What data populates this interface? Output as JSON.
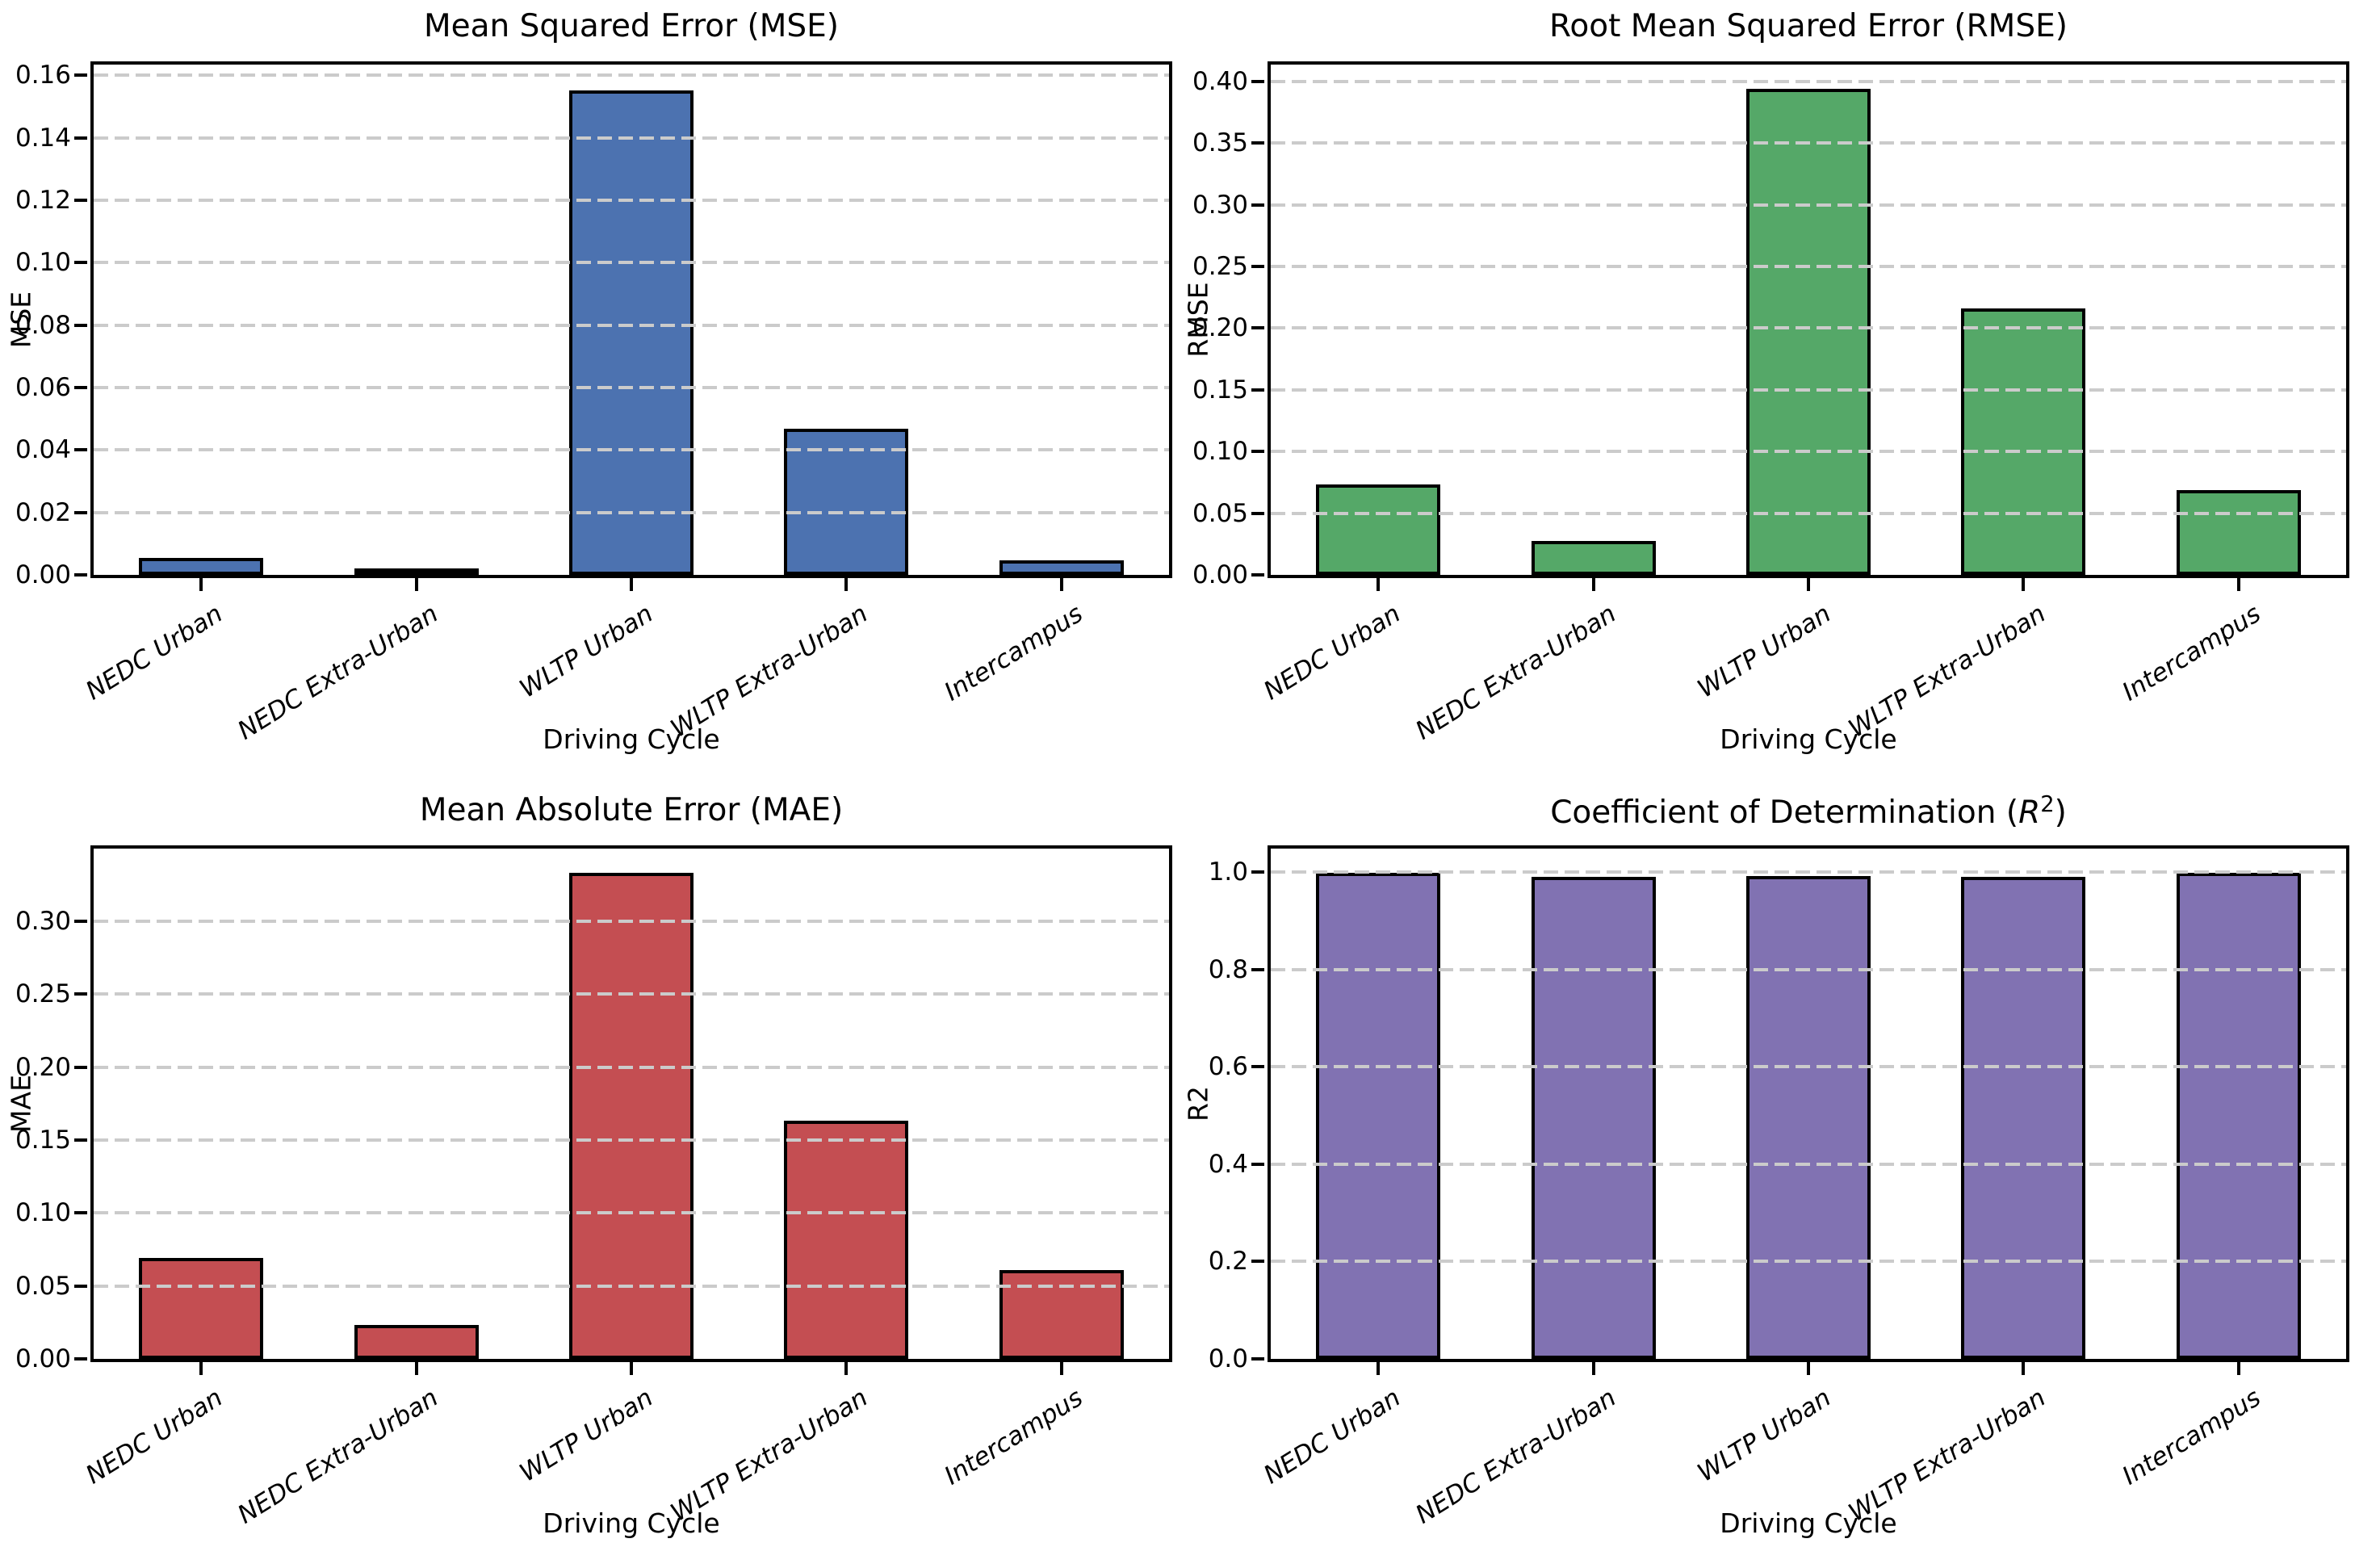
{
  "figure": {
    "background": "#ffffff",
    "grid_color": "#cbcbcb",
    "bar_edge_color": "#000000"
  },
  "chart_data": [
    {
      "type": "bar",
      "title": "Mean Squared Error (MSE)",
      "xlabel": "Driving Cycle",
      "ylabel": "MSE",
      "categories": [
        "NEDC Urban",
        "NEDC Extra-Urban",
        "WLTP Urban",
        "WLTP Extra-Urban",
        "Intercampus"
      ],
      "values": [
        0.0054,
        0.0008,
        0.1552,
        0.0468,
        0.0047
      ],
      "bar_color": "#4C72B0",
      "ylim": [
        0,
        0.1634
      ],
      "yticks": [
        0,
        0.02,
        0.04,
        0.06,
        0.08,
        0.1,
        0.12,
        0.14,
        0.16
      ],
      "ytick_labels": [
        "0.00",
        "0.02",
        "0.04",
        "0.06",
        "0.08",
        "0.10",
        "0.12",
        "0.14",
        "0.16"
      ],
      "grid": "horizontal-dashed",
      "legend": "none"
    },
    {
      "type": "bar",
      "title": "Root Mean Squared Error (RMSE)",
      "xlabel": "Driving Cycle",
      "ylabel": "RMSE",
      "categories": [
        "NEDC Urban",
        "NEDC Extra-Urban",
        "WLTP Urban",
        "WLTP Extra-Urban",
        "Intercampus"
      ],
      "values": [
        0.0735,
        0.0275,
        0.394,
        0.2163,
        0.0685
      ],
      "bar_color": "#55A868",
      "ylim": [
        0,
        0.4137
      ],
      "yticks": [
        0,
        0.05,
        0.1,
        0.15,
        0.2,
        0.25,
        0.3,
        0.35,
        0.4
      ],
      "ytick_labels": [
        "0.00",
        "0.05",
        "0.10",
        "0.15",
        "0.20",
        "0.25",
        "0.30",
        "0.35",
        "0.40"
      ],
      "grid": "horizontal-dashed",
      "legend": "none"
    },
    {
      "type": "bar",
      "title": "Mean Absolute Error (MAE)",
      "xlabel": "Driving Cycle",
      "ylabel": "MAE",
      "categories": [
        "NEDC Urban",
        "NEDC Extra-Urban",
        "WLTP Urban",
        "WLTP Extra-Urban",
        "Intercampus"
      ],
      "values": [
        0.069,
        0.023,
        0.333,
        0.163,
        0.061
      ],
      "bar_color": "#C44E52",
      "ylim": [
        0,
        0.3497
      ],
      "yticks": [
        0,
        0.05,
        0.1,
        0.15,
        0.2,
        0.25,
        0.3
      ],
      "ytick_labels": [
        "0.00",
        "0.05",
        "0.10",
        "0.15",
        "0.20",
        "0.25",
        "0.30"
      ],
      "grid": "horizontal-dashed",
      "legend": "none"
    },
    {
      "type": "bar",
      "title": "Coefficient of Determination (R²)",
      "xlabel": "Driving Cycle",
      "ylabel": "R2",
      "categories": [
        "NEDC Urban",
        "NEDC Extra-Urban",
        "WLTP Urban",
        "WLTP Extra-Urban",
        "Intercampus"
      ],
      "values": [
        0.998,
        0.99,
        0.992,
        0.99,
        0.998
      ],
      "bar_color": "#8172B2",
      "ylim": [
        0,
        1.048
      ],
      "yticks": [
        0,
        0.2,
        0.4,
        0.6,
        0.8,
        1.0
      ],
      "ytick_labels": [
        "0.0",
        "0.2",
        "0.4",
        "0.6",
        "0.8",
        "1.0"
      ],
      "grid": "horizontal-dashed",
      "legend": "none"
    }
  ]
}
